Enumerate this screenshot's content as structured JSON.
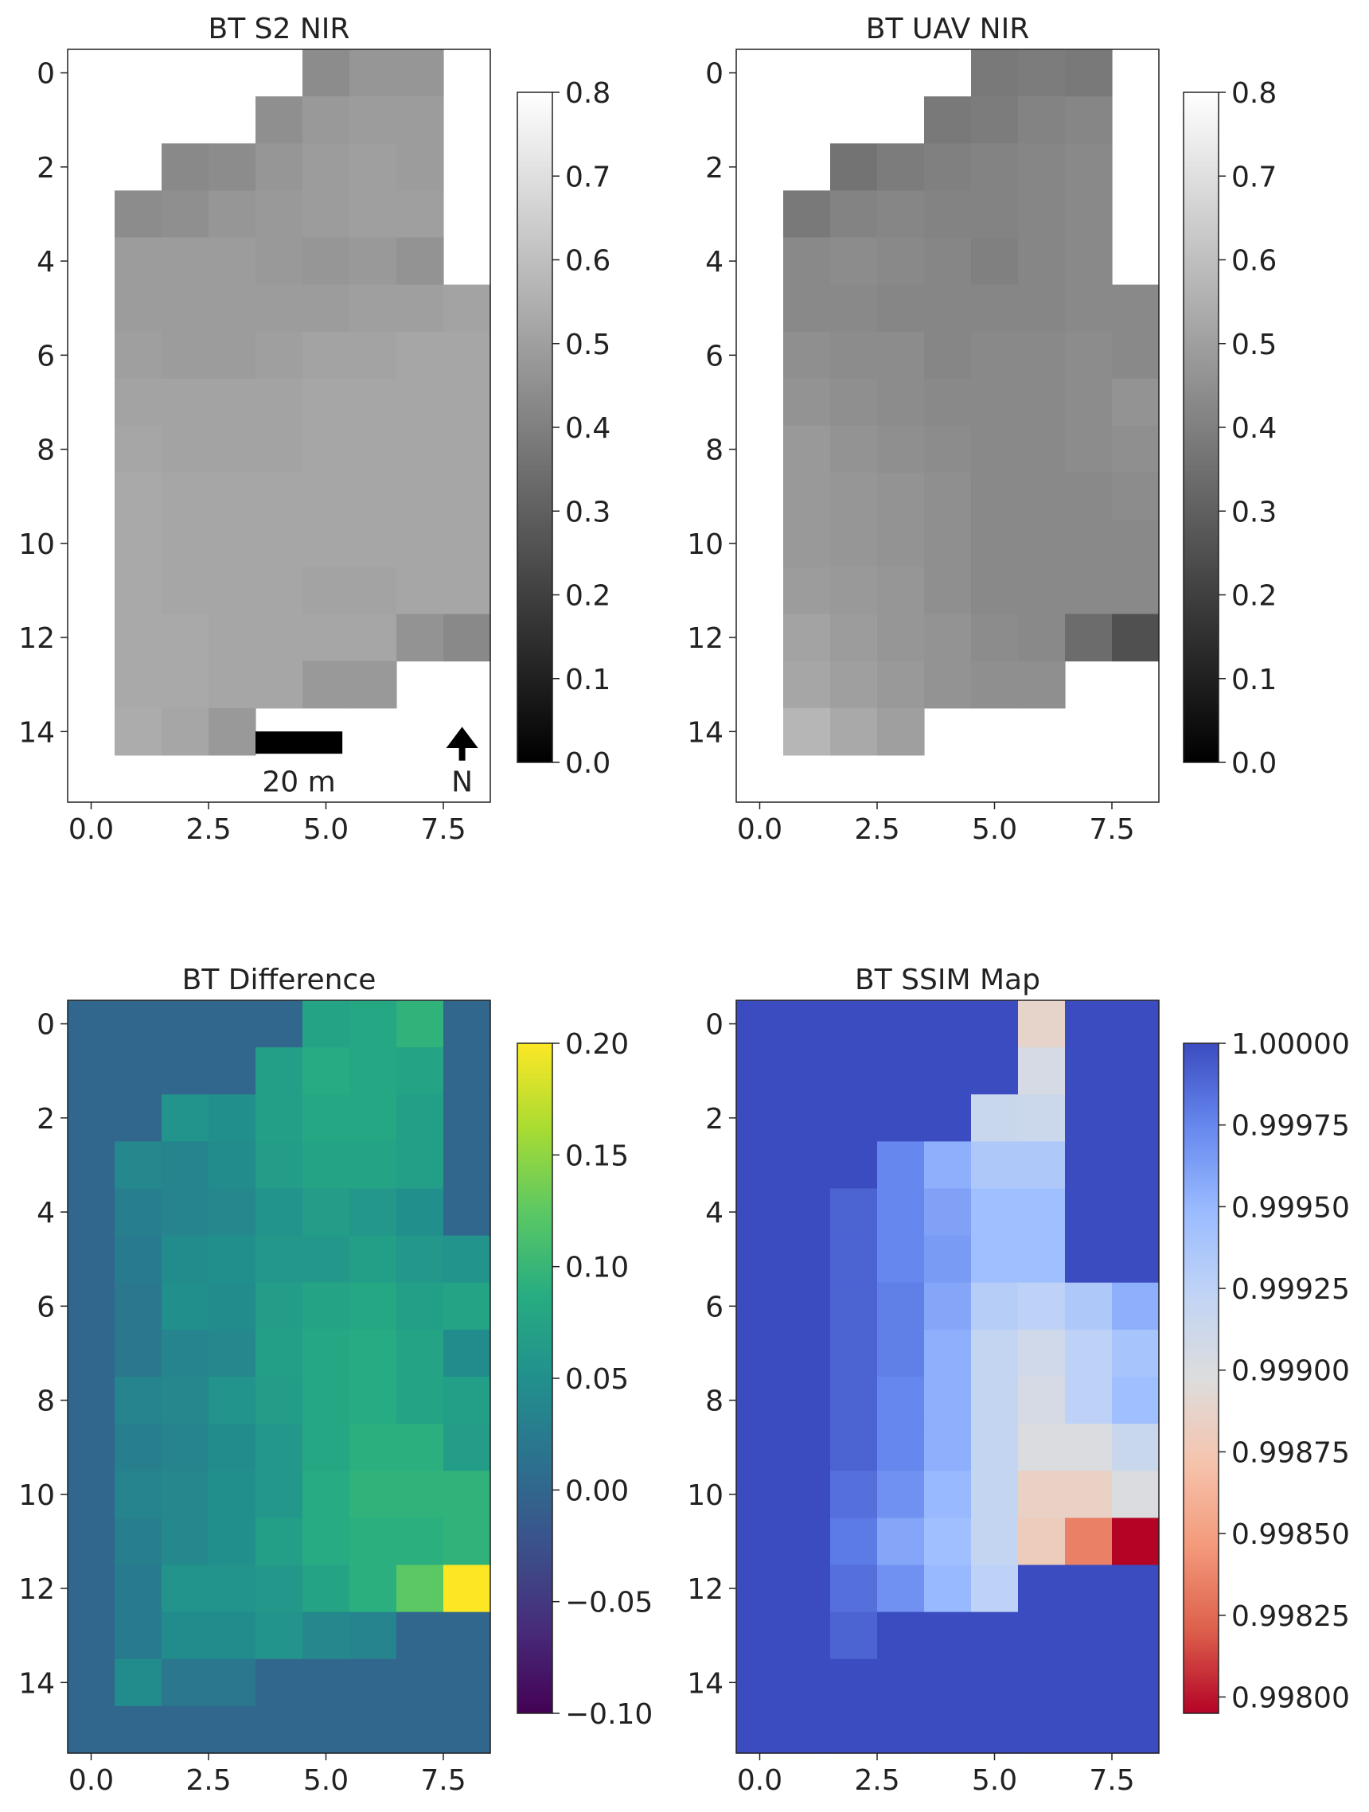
{
  "chart_data": [
    {
      "type": "heatmap",
      "title": "BT S2 NIR",
      "colormap": "gray",
      "vmin": 0.0,
      "vmax": 0.8,
      "xlim": [
        -0.5,
        8.5
      ],
      "ylim": [
        15.5,
        -0.5
      ],
      "xticks": [
        "0.0",
        "2.5",
        "5.0",
        "7.5"
      ],
      "yticks": [
        "0",
        "2",
        "4",
        "6",
        "8",
        "10",
        "12",
        "14"
      ],
      "colorbar_ticks": [
        "0.0",
        "0.1",
        "0.2",
        "0.3",
        "0.4",
        "0.5",
        "0.6",
        "0.7",
        "0.8"
      ],
      "scalebar_label": "20 m",
      "north_label": "N",
      "values": [
        [
          null,
          null,
          null,
          null,
          null,
          0.44,
          0.47,
          0.47,
          null
        ],
        [
          null,
          null,
          null,
          null,
          0.45,
          0.48,
          0.49,
          0.49,
          null
        ],
        [
          null,
          null,
          0.43,
          0.44,
          0.47,
          0.49,
          0.5,
          0.49,
          null
        ],
        [
          null,
          0.44,
          0.45,
          0.47,
          0.48,
          0.49,
          0.5,
          0.5,
          null
        ],
        [
          null,
          0.49,
          0.49,
          0.49,
          0.48,
          0.47,
          0.48,
          0.46,
          null
        ],
        [
          null,
          0.49,
          0.49,
          0.49,
          0.49,
          0.49,
          0.5,
          0.5,
          0.51
        ],
        [
          null,
          0.5,
          0.49,
          0.49,
          0.5,
          0.51,
          0.51,
          0.52,
          0.52
        ],
        [
          null,
          0.51,
          0.51,
          0.51,
          0.51,
          0.52,
          0.52,
          0.52,
          0.52
        ],
        [
          null,
          0.52,
          0.51,
          0.51,
          0.51,
          0.52,
          0.52,
          0.52,
          0.52
        ],
        [
          null,
          0.53,
          0.52,
          0.52,
          0.52,
          0.52,
          0.52,
          0.52,
          0.52
        ],
        [
          null,
          0.53,
          0.52,
          0.52,
          0.52,
          0.52,
          0.52,
          0.52,
          0.52
        ],
        [
          null,
          0.53,
          0.52,
          0.52,
          0.52,
          0.51,
          0.51,
          0.52,
          0.52
        ],
        [
          null,
          0.53,
          0.53,
          0.52,
          0.52,
          0.52,
          0.52,
          0.46,
          0.43
        ],
        [
          null,
          0.53,
          0.53,
          0.52,
          0.52,
          0.48,
          0.48,
          null,
          null
        ],
        [
          null,
          0.54,
          0.52,
          0.48,
          null,
          null,
          null,
          null,
          null
        ],
        [
          null,
          null,
          null,
          null,
          null,
          null,
          null,
          null,
          null
        ]
      ]
    },
    {
      "type": "heatmap",
      "title": "BT UAV NIR",
      "colormap": "gray",
      "vmin": 0.0,
      "vmax": 0.8,
      "xlim": [
        -0.5,
        8.5
      ],
      "ylim": [
        15.5,
        -0.5
      ],
      "xticks": [
        "0.0",
        "2.5",
        "5.0",
        "7.5"
      ],
      "yticks": [
        "0",
        "2",
        "4",
        "6",
        "8",
        "10",
        "12",
        "14"
      ],
      "colorbar_ticks": [
        "0.0",
        "0.1",
        "0.2",
        "0.3",
        "0.4",
        "0.5",
        "0.6",
        "0.7",
        "0.8"
      ],
      "values": [
        [
          null,
          null,
          null,
          null,
          null,
          0.38,
          0.39,
          0.38,
          null
        ],
        [
          null,
          null,
          null,
          null,
          0.38,
          0.39,
          0.41,
          0.42,
          null
        ],
        [
          null,
          null,
          0.36,
          0.39,
          0.4,
          0.41,
          0.42,
          0.43,
          null
        ],
        [
          null,
          0.38,
          0.41,
          0.42,
          0.41,
          0.41,
          0.42,
          0.43,
          null
        ],
        [
          null,
          0.43,
          0.44,
          0.43,
          0.42,
          0.4,
          0.42,
          0.43,
          null
        ],
        [
          null,
          0.43,
          0.43,
          0.42,
          0.42,
          0.42,
          0.42,
          0.43,
          0.43
        ],
        [
          null,
          0.45,
          0.44,
          0.44,
          0.42,
          0.43,
          0.43,
          0.44,
          0.43
        ],
        [
          null,
          0.46,
          0.45,
          0.44,
          0.43,
          0.43,
          0.43,
          0.44,
          0.46
        ],
        [
          null,
          0.48,
          0.46,
          0.45,
          0.44,
          0.43,
          0.43,
          0.44,
          0.45
        ],
        [
          null,
          0.48,
          0.47,
          0.46,
          0.45,
          0.43,
          0.43,
          0.43,
          0.44
        ],
        [
          null,
          0.48,
          0.47,
          0.46,
          0.45,
          0.43,
          0.43,
          0.43,
          0.43
        ],
        [
          null,
          0.49,
          0.48,
          0.47,
          0.45,
          0.43,
          0.43,
          0.43,
          0.43
        ],
        [
          null,
          0.51,
          0.49,
          0.47,
          0.46,
          0.44,
          0.43,
          0.34,
          0.25
        ],
        [
          null,
          0.52,
          0.5,
          0.48,
          0.46,
          0.45,
          0.45,
          null,
          null
        ],
        [
          null,
          0.57,
          0.53,
          0.5,
          null,
          null,
          null,
          null,
          null
        ],
        [
          null,
          null,
          null,
          null,
          null,
          null,
          null,
          null,
          null
        ]
      ]
    },
    {
      "type": "heatmap",
      "title": "BT Difference",
      "colormap": "viridis",
      "vmin": -0.1,
      "vmax": 0.2,
      "xlim": [
        -0.5,
        8.5
      ],
      "ylim": [
        15.5,
        -0.5
      ],
      "xticks": [
        "0.0",
        "2.5",
        "5.0",
        "7.5"
      ],
      "yticks": [
        "0",
        "2",
        "4",
        "6",
        "8",
        "10",
        "12",
        "14"
      ],
      "colorbar_ticks": [
        "−0.10",
        "−0.05",
        "0.00",
        "0.05",
        "0.10",
        "0.15",
        "0.20"
      ],
      "values": [
        [
          0.0,
          0.0,
          0.0,
          0.0,
          0.0,
          0.075,
          0.08,
          0.095,
          0.0
        ],
        [
          0.0,
          0.0,
          0.0,
          0.0,
          0.07,
          0.085,
          0.08,
          0.075,
          0.0
        ],
        [
          0.0,
          0.0,
          0.055,
          0.05,
          0.07,
          0.08,
          0.08,
          0.07,
          0.0
        ],
        [
          0.0,
          0.04,
          0.035,
          0.045,
          0.065,
          0.075,
          0.075,
          0.07,
          0.0
        ],
        [
          0.0,
          0.03,
          0.035,
          0.04,
          0.055,
          0.065,
          0.06,
          0.05,
          0.0
        ],
        [
          0.0,
          0.025,
          0.045,
          0.05,
          0.06,
          0.06,
          0.07,
          0.06,
          0.055
        ],
        [
          0.0,
          0.02,
          0.05,
          0.045,
          0.065,
          0.075,
          0.08,
          0.07,
          0.075
        ],
        [
          0.0,
          0.02,
          0.035,
          0.04,
          0.07,
          0.08,
          0.085,
          0.075,
          0.045
        ],
        [
          0.0,
          0.035,
          0.04,
          0.055,
          0.065,
          0.08,
          0.085,
          0.075,
          0.07
        ],
        [
          0.0,
          0.03,
          0.035,
          0.045,
          0.06,
          0.08,
          0.09,
          0.09,
          0.065
        ],
        [
          0.0,
          0.035,
          0.04,
          0.05,
          0.06,
          0.085,
          0.095,
          0.095,
          0.095
        ],
        [
          0.0,
          0.03,
          0.04,
          0.05,
          0.07,
          0.085,
          0.09,
          0.09,
          0.095
        ],
        [
          0.0,
          0.025,
          0.055,
          0.055,
          0.06,
          0.075,
          0.09,
          0.125,
          0.2
        ],
        [
          0.0,
          0.025,
          0.045,
          0.045,
          0.055,
          0.04,
          0.035,
          0.0,
          0.0
        ],
        [
          0.0,
          0.045,
          0.02,
          0.02,
          0.0,
          0.0,
          0.0,
          0.0,
          0.0
        ],
        [
          0.0,
          0.0,
          0.0,
          0.0,
          0.0,
          0.0,
          0.0,
          0.0,
          0.0
        ]
      ]
    },
    {
      "type": "heatmap",
      "title": "BT SSIM Map",
      "colormap": "coolwarm_r",
      "vmin": 0.99795,
      "vmax": 1.0,
      "xlim": [
        -0.5,
        8.5
      ],
      "ylim": [
        15.5,
        -0.5
      ],
      "xticks": [
        "0.0",
        "2.5",
        "5.0",
        "7.5"
      ],
      "yticks": [
        "0",
        "2",
        "4",
        "6",
        "8",
        "10",
        "12",
        "14"
      ],
      "colorbar_ticks": [
        "0.99800",
        "0.99825",
        "0.99850",
        "0.99875",
        "0.99900",
        "0.99925",
        "0.99950",
        "0.99975",
        "1.00000"
      ],
      "values": [
        [
          1.0,
          1.0,
          1.0,
          1.0,
          1.0,
          1.0,
          0.99888,
          1.0,
          1.0
        ],
        [
          1.0,
          1.0,
          1.0,
          1.0,
          1.0,
          1.0,
          0.99905,
          1.0,
          1.0
        ],
        [
          1.0,
          1.0,
          1.0,
          1.0,
          1.0,
          0.99915,
          0.99913,
          1.0,
          1.0
        ],
        [
          1.0,
          1.0,
          1.0,
          0.99975,
          0.99955,
          0.99935,
          0.99935,
          1.0,
          1.0
        ],
        [
          1.0,
          1.0,
          0.9999,
          0.99975,
          0.99962,
          0.99945,
          0.99945,
          1.0,
          1.0
        ],
        [
          1.0,
          1.0,
          0.9999,
          0.99975,
          0.99965,
          0.99945,
          0.99945,
          1.0,
          1.0
        ],
        [
          1.0,
          1.0,
          0.9999,
          0.99978,
          0.9996,
          0.9993,
          0.99925,
          0.99935,
          0.99955
        ],
        [
          1.0,
          1.0,
          0.9999,
          0.99978,
          0.99955,
          0.9992,
          0.9991,
          0.99925,
          0.9994
        ],
        [
          1.0,
          1.0,
          0.9999,
          0.99975,
          0.99955,
          0.9992,
          0.99905,
          0.99925,
          0.99945
        ],
        [
          1.0,
          1.0,
          0.9999,
          0.99975,
          0.99955,
          0.9992,
          0.999,
          0.999,
          0.99915
        ],
        [
          1.0,
          1.0,
          0.99985,
          0.9997,
          0.9995,
          0.9992,
          0.99885,
          0.99885,
          0.999
        ],
        [
          1.0,
          1.0,
          0.9998,
          0.9996,
          0.99945,
          0.9992,
          0.9988,
          0.99835,
          0.99795
        ],
        [
          1.0,
          1.0,
          0.99985,
          0.9997,
          0.9995,
          0.99925,
          1.0,
          1.0,
          1.0
        ],
        [
          1.0,
          1.0,
          0.9999,
          1.0,
          1.0,
          1.0,
          1.0,
          1.0,
          1.0
        ],
        [
          1.0,
          1.0,
          1.0,
          1.0,
          1.0,
          1.0,
          1.0,
          1.0,
          1.0
        ],
        [
          1.0,
          1.0,
          1.0,
          1.0,
          1.0,
          1.0,
          1.0,
          1.0,
          1.0
        ]
      ]
    }
  ]
}
